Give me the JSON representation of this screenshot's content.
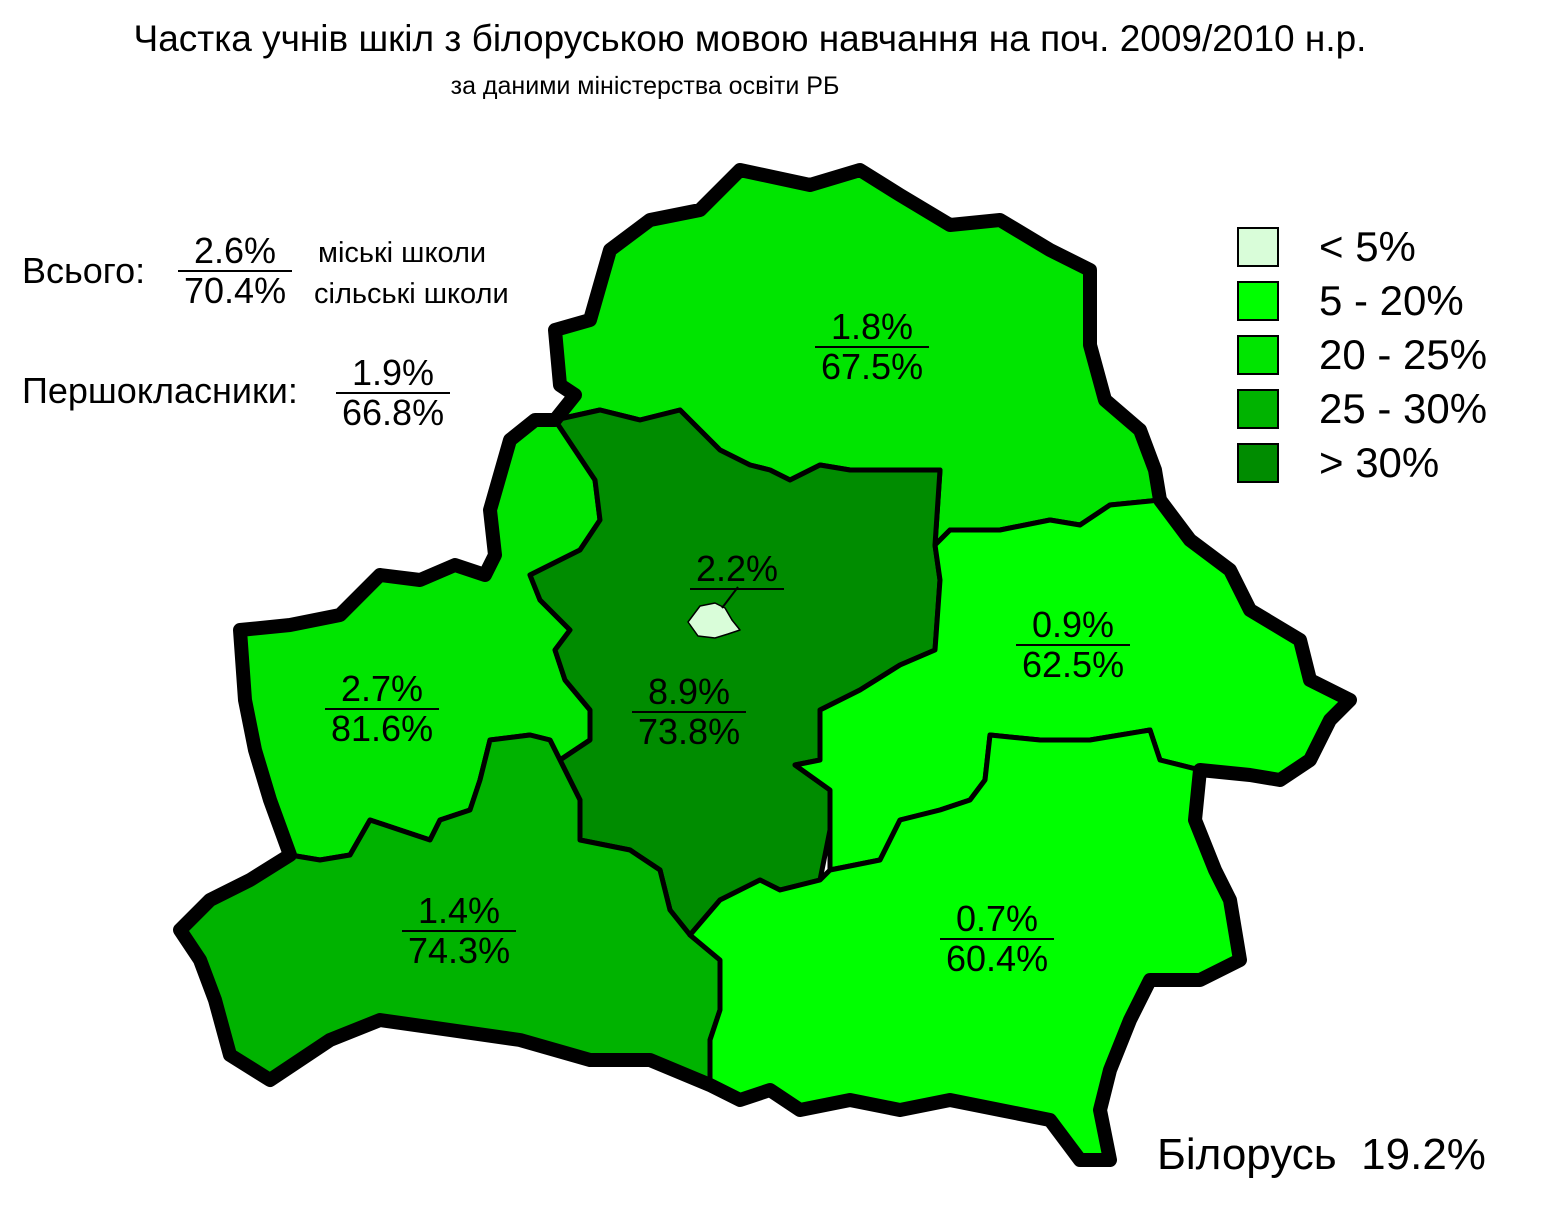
{
  "title": "Частка учнів шкіл з білоруською мовою навчання на поч. 2009/2010 н.р.",
  "subtitle": "за даними міністерства освіти РБ",
  "totals": {
    "label": "Всього:",
    "urban": "2.6%",
    "rural": "70.4%",
    "urban_label": "міські школи",
    "rural_label": "сільські школи"
  },
  "first_graders": {
    "label": "Першокласники:",
    "urban": "1.9%",
    "rural": "66.8%"
  },
  "legend": [
    {
      "label": "< 5%",
      "color": "#d9fdd9"
    },
    {
      "label": "5 - 20%",
      "color": "#00ff00"
    },
    {
      "label": "20 - 25%",
      "color": "#00e500"
    },
    {
      "label": "25 - 30%",
      "color": "#00b300"
    },
    {
      "label": "> 30%",
      "color": "#008c00"
    }
  ],
  "regions": {
    "vitebsk": {
      "urban": "1.8%",
      "rural": "67.5%",
      "color": "#00e500"
    },
    "grodno": {
      "urban": "2.7%",
      "rural": "81.6%",
      "color": "#00e500"
    },
    "minsk_region": {
      "urban": "8.9%",
      "rural": "73.8%",
      "color": "#008c00"
    },
    "minsk_city": {
      "urban": "2.2%",
      "color": "#d9fdd9"
    },
    "mogilev": {
      "urban": "0.9%",
      "rural": "62.5%",
      "color": "#00ff00"
    },
    "brest": {
      "urban": "1.4%",
      "rural": "74.3%",
      "color": "#00b300"
    },
    "gomel": {
      "urban": "0.7%",
      "rural": "60.4%",
      "color": "#00ff00"
    }
  },
  "country": {
    "label": "Білорусь",
    "value": "19.2%"
  }
}
